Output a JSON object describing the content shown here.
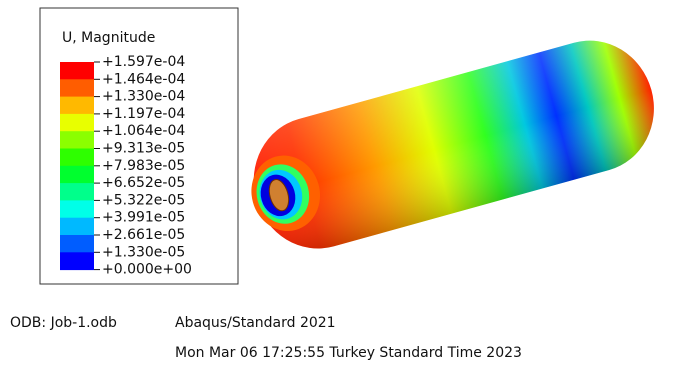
{
  "legend": {
    "title": "U, Magnitude",
    "labels": [
      "+1.597e-04",
      "+1.464e-04",
      "+1.330e-04",
      "+1.197e-04",
      "+1.064e-04",
      "+9.313e-05",
      "+7.983e-05",
      "+6.652e-05",
      "+5.322e-05",
      "+3.991e-05",
      "+2.661e-05",
      "+1.330e-05",
      "+0.000e+00"
    ],
    "band_colors": [
      "#ff0000",
      "#ff5d00",
      "#ffb900",
      "#e8ff00",
      "#8bff00",
      "#2eff00",
      "#00ff2e",
      "#00ff8b",
      "#00ffe8",
      "#00b9ff",
      "#005dff",
      "#0000ff"
    ]
  },
  "footer": {
    "odb": "ODB: Job-1.odb",
    "solver": "Abaqus/Standard 2021",
    "date": "Mon Mar 06 17:25:55 Turkey Standard Time 2023"
  }
}
